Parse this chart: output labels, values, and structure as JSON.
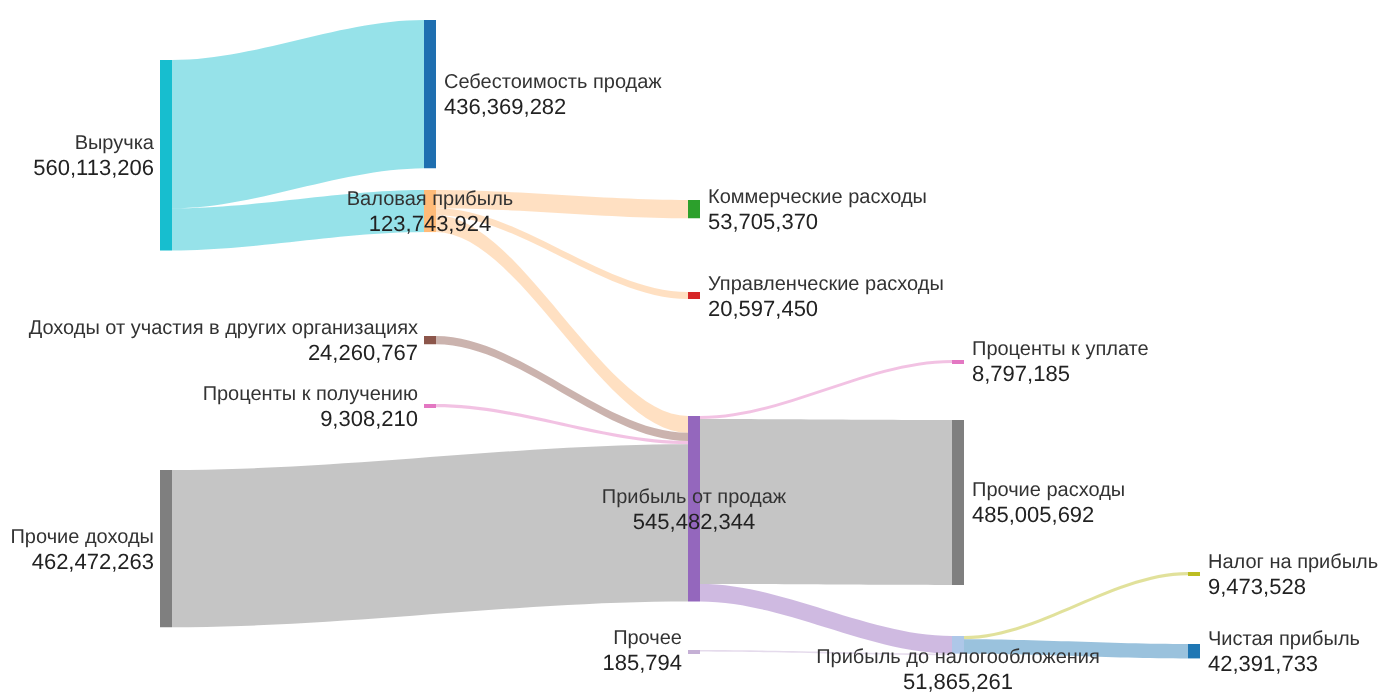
{
  "chart_data": {
    "type": "other",
    "categories": [
      "Выручка",
      "Себестоимость продаж",
      "Валовая прибыль",
      "Коммерческие расходы",
      "Управленческие расходы",
      "Доходы от участия в других организациях",
      "Проценты к получению",
      "Прочие доходы",
      "Прибыль от продаж",
      "Проценты к уплате",
      "Прочие расходы",
      "Прибыль до налогообложения",
      "Прочее",
      "Налог на прибыль",
      "Чистая прибыль"
    ],
    "values": [
      560113206,
      436369282,
      123743924,
      53705370,
      20597450,
      24260767,
      9308210,
      462472263,
      545482344,
      8797185,
      485005692,
      51865261,
      185794,
      9473528,
      42391733
    ],
    "value_labels": [
      "560,113,206",
      "436,369,282",
      "123,743,924",
      "53,705,370",
      "20,597,450",
      "24,260,767",
      "9,308,210",
      "462,472,263",
      "545,482,344",
      "8,797,185",
      "485,005,692",
      "51,865,261",
      "185,794",
      "9,473,528",
      "42,391,733"
    ],
    "colors": [
      "#17becf",
      "#1f6fb0",
      "#ffbb78",
      "#2ca02c",
      "#d62728",
      "#8c564b",
      "#e377c2",
      "#7f7f7f",
      "#9467bd",
      "#e377c2",
      "#7f7f7f",
      "#aec7e8",
      "#c5b0d5",
      "#bcbd22",
      "#1f77b4"
    ]
  }
}
